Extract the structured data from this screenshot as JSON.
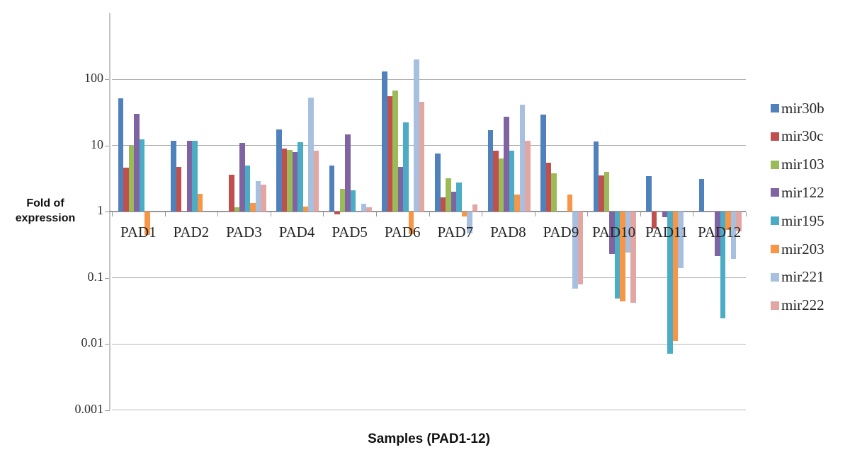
{
  "chart_data": {
    "type": "bar",
    "title": "",
    "xlabel": "Samples (PAD1-12)",
    "ylabel": "Fold of expression",
    "ylabel_lines": [
      "Fold of",
      "expression"
    ],
    "y_scale": "log10",
    "baseline_value": 1,
    "ylim": [
      0.001,
      1000
    ],
    "grid": true,
    "legend_position": "right",
    "ytick_values": [
      100,
      10,
      1,
      0.1,
      0.01,
      0.001
    ],
    "ytick_labels": [
      "100",
      "10",
      "1",
      "0.1",
      "0.01",
      "0.001"
    ],
    "categories": [
      "PAD1",
      "PAD2",
      "PAD3",
      "PAD4",
      "PAD5",
      "PAD6",
      "PAD7",
      "PAD8",
      "PAD9",
      "PAD10",
      "PAD11",
      "PAD12"
    ],
    "series": [
      {
        "name": "mir30b",
        "color": "#4f81bd",
        "values": [
          51,
          11.6,
          1,
          17.5,
          4.9,
          130,
          7.6,
          17,
          29,
          11.5,
          3.4,
          3.1
        ]
      },
      {
        "name": "mir30c",
        "color": "#c0504d",
        "values": [
          4.6,
          4.7,
          3.6,
          9,
          0.9,
          56,
          1.65,
          8.4,
          5.5,
          3.5,
          0.55,
          1
        ]
      },
      {
        "name": "mir103",
        "color": "#9bbb59",
        "values": [
          10,
          1,
          1.17,
          8.6,
          2.2,
          68,
          3.2,
          6.4,
          3.8,
          4.0,
          1,
          1
        ]
      },
      {
        "name": "mir122",
        "color": "#8064a2",
        "values": [
          30,
          11.8,
          11,
          7.9,
          14.8,
          4.7,
          2.0,
          27,
          1,
          0.23,
          0.82,
          0.21
        ]
      },
      {
        "name": "mir195",
        "color": "#4bacc6",
        "values": [
          12.4,
          11.8,
          5.0,
          11.3,
          2.1,
          22,
          2.75,
          8.4,
          1,
          0.048,
          0.007,
          0.024
        ]
      },
      {
        "name": "mir203",
        "color": "#f79646",
        "values": [
          0.44,
          1.85,
          1.35,
          1.2,
          1,
          0.46,
          0.84,
          1.8,
          1.8,
          0.044,
          0.011,
          0.53
        ]
      },
      {
        "name": "mir221",
        "color": "#a8c0e0",
        "values": [
          1,
          1,
          2.9,
          53,
          1.3,
          200,
          0.47,
          41,
          0.069,
          0.24,
          0.14,
          0.19
        ]
      },
      {
        "name": "mir222",
        "color": "#e2a6a3",
        "values": [
          1,
          1,
          2.55,
          8.4,
          1.15,
          45,
          1.27,
          11.8,
          0.08,
          0.042,
          1,
          0.5
        ]
      }
    ]
  }
}
